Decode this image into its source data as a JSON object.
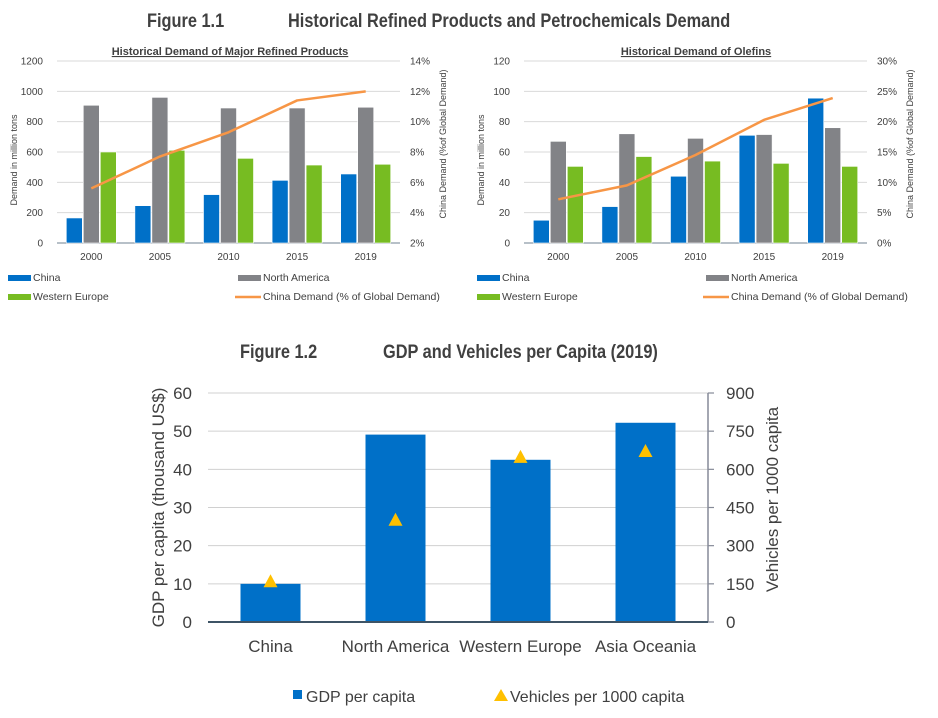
{
  "figure_1_1": {
    "number": "Figure 1.1",
    "title": "Historical Refined Products and Petrochemicals Demand"
  },
  "figure_1_2": {
    "number": "Figure 1.2",
    "title": "GDP and Vehicles per Capita (2019)"
  },
  "colors": {
    "china": "#0070C8",
    "north_america": "#828387",
    "western_europe": "#77BC22",
    "line": "#F79646",
    "gdp": "#0070C8",
    "vehicles": "#FFC000"
  },
  "chart_data": [
    {
      "type": "bar",
      "title": "Historical Demand of Major Refined Products",
      "categories": [
        "2000",
        "2005",
        "2010",
        "2015",
        "2019"
      ],
      "ylabel": "Demand in million tons",
      "y2label": "China Demand (%of Global Demand)",
      "ylim": [
        0,
        1200
      ],
      "yticks": [
        0,
        200,
        400,
        600,
        800,
        1000,
        1200
      ],
      "y2lim": [
        2,
        14
      ],
      "y2ticks": [
        "2%",
        "4%",
        "6%",
        "8%",
        "10%",
        "12%",
        "14%"
      ],
      "grid": true,
      "legend_position": "bottom",
      "series": [
        {
          "name": "China",
          "type": "bar",
          "values": [
            165,
            246,
            319,
            413,
            455
          ]
        },
        {
          "name": "North America",
          "type": "bar",
          "values": [
            908,
            960,
            890,
            890,
            895
          ]
        },
        {
          "name": "Western Europe",
          "type": "bar",
          "values": [
            600,
            611,
            558,
            514,
            519
          ]
        },
        {
          "name": "China Demand (% of Global Demand)",
          "type": "line",
          "axis": "right",
          "values": [
            5.6,
            7.7,
            9.3,
            11.4,
            12.0
          ]
        }
      ]
    },
    {
      "type": "bar",
      "title": "Historical Demand of Olefins",
      "categories": [
        "2000",
        "2005",
        "2010",
        "2015",
        "2019"
      ],
      "ylabel": "Demand in million tons",
      "y2label": "China Demand (%of Global Demand)",
      "ylim": [
        0,
        120
      ],
      "yticks": [
        0,
        20,
        40,
        60,
        80,
        100,
        120
      ],
      "y2lim": [
        0,
        30
      ],
      "y2ticks": [
        "0%",
        "5%",
        "10%",
        "15%",
        "20%",
        "25%",
        "30%"
      ],
      "grid": true,
      "legend_position": "bottom",
      "series": [
        {
          "name": "China",
          "type": "bar",
          "values": [
            15,
            24,
            44,
            71,
            95.5
          ]
        },
        {
          "name": "North America",
          "type": "bar",
          "values": [
            67,
            72,
            69,
            71.5,
            76
          ]
        },
        {
          "name": "Western Europe",
          "type": "bar",
          "values": [
            50.5,
            57,
            54,
            52.5,
            50.5
          ]
        },
        {
          "name": "China Demand (% of Global Demand)",
          "type": "line",
          "axis": "right",
          "values": [
            7.2,
            9.5,
            14.5,
            20.3,
            23.9
          ]
        }
      ]
    },
    {
      "type": "bar",
      "title": "GDP and Vehicles per Capita (2019)",
      "categories": [
        "China",
        "North America",
        "Western Europe",
        "Asia Oceania"
      ],
      "ylabel": "GDP per capita (thousand US$)",
      "y2label": "Vehicles per 1000 capita",
      "ylim": [
        0,
        60
      ],
      "yticks": [
        0,
        10,
        20,
        30,
        40,
        50,
        60
      ],
      "y2lim": [
        0,
        900
      ],
      "y2ticks": [
        "0",
        "150",
        "300",
        "450",
        "600",
        "750",
        "900"
      ],
      "grid": true,
      "legend_position": "bottom",
      "series": [
        {
          "name": "GDP per capita",
          "type": "bar",
          "values": [
            10,
            49.1,
            42.5,
            52.2
          ]
        },
        {
          "name": "Vehicles per 1000 capita",
          "type": "scatter",
          "marker": "triangle",
          "axis": "right",
          "values": [
            160,
            402,
            649,
            672
          ]
        }
      ]
    }
  ]
}
